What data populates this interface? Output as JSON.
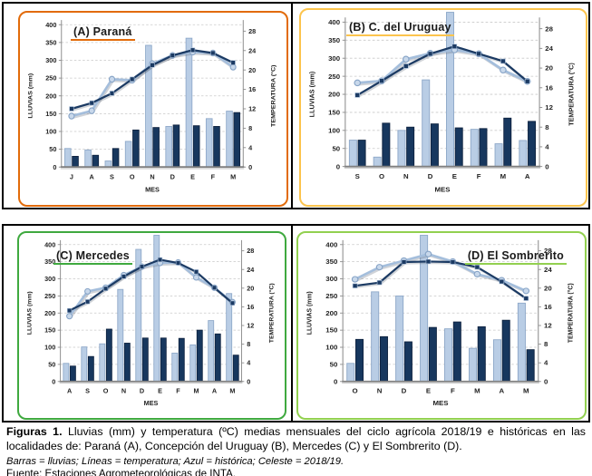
{
  "caption": {
    "label": "Figuras 1.",
    "text": "Lluvias (mm) y temperatura (ºC) medias mensuales del ciclo agrícola 2018/19 e históricas en las localidades de: Paraná (A), Concepción del Uruguay (B), Mercedes (C) y El Sombrerito (D).",
    "legend": "Barras = lluvias; Líneas = temperatura; Azul = histórica; Celeste = 2018/19.",
    "source": "Fuente: Estaciones Agrometeorológicas de INTA."
  },
  "axes": {
    "left_label": "LLUVIAS (mm)",
    "right_label": "TEMPERATURA (°C)",
    "x_label": "MES",
    "left_min": 0,
    "left_max": 400,
    "left_step": 50,
    "right_min": 0,
    "right_max": 28,
    "right_step": 4,
    "grid": "dashed-horizontal"
  },
  "colors": {
    "celeste_bar_fill": "#B9CDE5",
    "celeste_bar_edge": "#8FA9C9",
    "azul_bar_fill": "#17375E",
    "azul_bar_edge": "#0F2340",
    "celeste_line": "#A4BEDC",
    "celeste_marker_fill": "#C8D8EB",
    "celeste_marker_edge": "#86A3C6",
    "azul_line": "#1B3A63",
    "azul_marker_edge": "#AFC3DC",
    "grid_line": "#C9C9C9",
    "axis_line": "#8C8C8C",
    "axis_bottom": "#7F7F7F",
    "tick_text": "#1F1F1F",
    "table_border": "#000000"
  },
  "chart_data": [
    {
      "type": "bar+line",
      "title": "(A) Paraná",
      "title_side": "left",
      "accent": "#E26B0A",
      "categories": [
        "J",
        "A",
        "S",
        "O",
        "N",
        "D",
        "E",
        "F",
        "M"
      ],
      "series": [
        {
          "name": "Lluvias 2018/19 (celeste)",
          "kind": "bar",
          "axis": "left",
          "values": [
            52,
            48,
            17,
            72,
            342,
            114,
            362,
            136,
            157
          ]
        },
        {
          "name": "Lluvias histórica (azul)",
          "kind": "bar",
          "axis": "left",
          "values": [
            30,
            33,
            52,
            104,
            111,
            118,
            116,
            114,
            153
          ]
        },
        {
          "name": "Temperatura 2018/19 (celeste)",
          "kind": "line",
          "axis": "right",
          "values": [
            10.5,
            11.6,
            18.1,
            17.9,
            21.3,
            23.0,
            23.7,
            23.5,
            20.6
          ]
        },
        {
          "name": "Temperatura histórica (azul)",
          "kind": "line",
          "axis": "right",
          "values": [
            12.0,
            13.2,
            15.2,
            18.1,
            21.0,
            23.0,
            24.1,
            23.5,
            21.5
          ]
        }
      ]
    },
    {
      "type": "bar+line",
      "title": "(B) C. del Uruguay",
      "title_side": "left",
      "accent": "#FCC44D",
      "categories": [
        "S",
        "O",
        "N",
        "D",
        "E",
        "F",
        "M",
        "A"
      ],
      "series": [
        {
          "name": "Lluvias 2018/19 (celeste)",
          "kind": "bar",
          "axis": "left",
          "values": [
            73,
            26,
            100,
            240,
            430,
            103,
            63,
            72
          ]
        },
        {
          "name": "Lluvias histórica (azul)",
          "kind": "bar",
          "axis": "left",
          "values": [
            73,
            120,
            109,
            118,
            107,
            105,
            134,
            125
          ]
        },
        {
          "name": "Temperatura 2018/19 (celeste)",
          "kind": "line",
          "axis": "right",
          "values": [
            17.0,
            17.4,
            21.8,
            23.0,
            23.7,
            22.9,
            19.6,
            17.3
          ]
        },
        {
          "name": "Temperatura histórica (azul)",
          "kind": "line",
          "axis": "right",
          "values": [
            14.5,
            17.4,
            20.4,
            22.9,
            24.4,
            22.9,
            21.4,
            17.3
          ]
        }
      ]
    },
    {
      "type": "bar+line",
      "title": "(C) Mercedes",
      "title_side": "left",
      "accent": "#3FA93F",
      "categories": [
        "A",
        "S",
        "O",
        "N",
        "D",
        "E",
        "F",
        "M",
        "A",
        "M"
      ],
      "series": [
        {
          "name": "Lluvias 2018/19 (celeste)",
          "kind": "bar",
          "axis": "left",
          "values": [
            53,
            101,
            110,
            269,
            386,
            440,
            83,
            107,
            178,
            257
          ]
        },
        {
          "name": "Lluvias histórica (azul)",
          "kind": "bar",
          "axis": "left",
          "values": [
            45,
            73,
            153,
            112,
            127,
            127,
            126,
            150,
            139,
            77
          ]
        },
        {
          "name": "Temperatura 2018/19 (celeste)",
          "kind": "line",
          "axis": "right",
          "values": [
            14.0,
            19.3,
            20.1,
            22.8,
            24.6,
            25.4,
            25.5,
            22.3,
            20.1,
            17.0
          ]
        },
        {
          "name": "Temperatura histórica (azul)",
          "kind": "line",
          "axis": "right",
          "values": [
            15.2,
            17.1,
            19.9,
            22.5,
            24.6,
            26.1,
            25.4,
            23.5,
            20.1,
            16.8
          ]
        }
      ]
    },
    {
      "type": "bar+line",
      "title": "(D) El Sombrerito",
      "title_side": "right",
      "accent": "#92D050",
      "categories": [
        "O",
        "N",
        "D",
        "E",
        "F",
        "M",
        "A",
        "M"
      ],
      "series": [
        {
          "name": "Lluvias 2018/19 (celeste)",
          "kind": "bar",
          "axis": "left",
          "values": [
            53,
            262,
            250,
            450,
            154,
            97,
            122,
            229
          ]
        },
        {
          "name": "Lluvias histórica (azul)",
          "kind": "bar",
          "axis": "left",
          "values": [
            123,
            131,
            116,
            158,
            174,
            160,
            179,
            93
          ]
        },
        {
          "name": "Temperatura 2018/19 (celeste)",
          "kind": "line",
          "axis": "right",
          "values": [
            21.9,
            24.5,
            25.9,
            27.3,
            25.7,
            23.0,
            21.7,
            19.4
          ]
        },
        {
          "name": "Temperatura histórica (azul)",
          "kind": "line",
          "axis": "right",
          "values": [
            20.5,
            21.2,
            25.6,
            25.7,
            25.6,
            24.5,
            21.4,
            17.8
          ]
        }
      ]
    }
  ]
}
